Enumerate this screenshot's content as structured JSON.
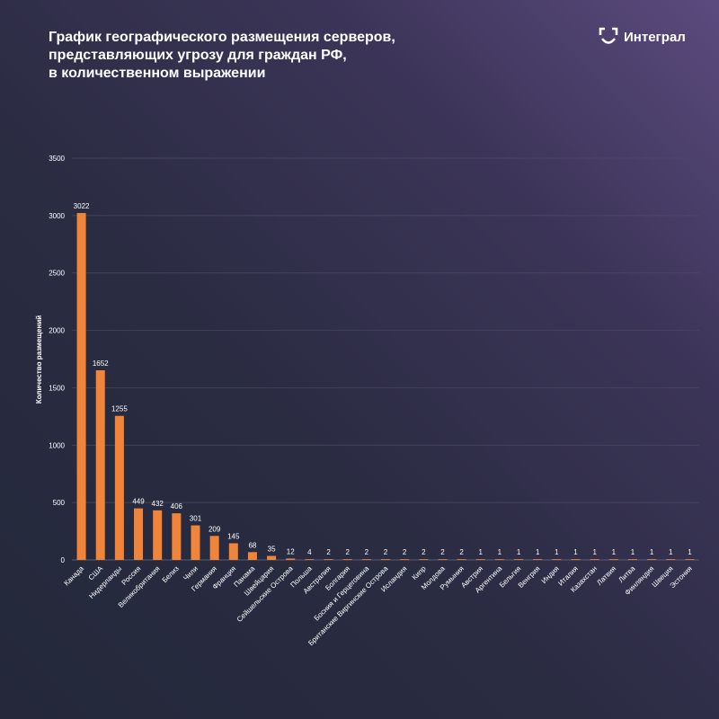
{
  "title": {
    "line1": "График географического размещения серверов,",
    "line2": "представляющих угрозу для граждан РФ,",
    "line3": "в количественном выражении"
  },
  "logo": {
    "text": "Интеграл",
    "icon": "integral-logo-icon"
  },
  "colors": {
    "bar": "#f0853a",
    "grid": "#4a4d63",
    "text": "#ffffff",
    "tick": "#c9cad6"
  },
  "chart_data": {
    "type": "bar",
    "ylabel": "Количество размещений",
    "xlabel": "",
    "ylim": [
      0,
      3500
    ],
    "yticks": [
      0,
      500,
      1000,
      1500,
      2000,
      2500,
      3000,
      3500
    ],
    "grid": true,
    "categories": [
      "Канада",
      "США",
      "Нидерланды",
      "Россия",
      "Великобритания",
      "Белиз",
      "Чили",
      "Германия",
      "Франция",
      "Панама",
      "Швейцария",
      "Сейшельские Острова",
      "Польша",
      "Австралия",
      "Болгария",
      "Босния и Герцеговина",
      "Британские Виргинские Острова",
      "Исландия",
      "Кипр",
      "Молдова",
      "Румыния",
      "Австрия",
      "Аргентина",
      "Бельгия",
      "Венгрия",
      "Индия",
      "Италия",
      "Казахстан",
      "Латвия",
      "Литва",
      "Финляндия",
      "Швеция",
      "Эстония"
    ],
    "values": [
      3022,
      1652,
      1255,
      449,
      432,
      406,
      301,
      209,
      145,
      68,
      35,
      12,
      4,
      2,
      2,
      2,
      2,
      2,
      2,
      2,
      2,
      1,
      1,
      1,
      1,
      1,
      1,
      1,
      1,
      1,
      1,
      1,
      1
    ]
  }
}
